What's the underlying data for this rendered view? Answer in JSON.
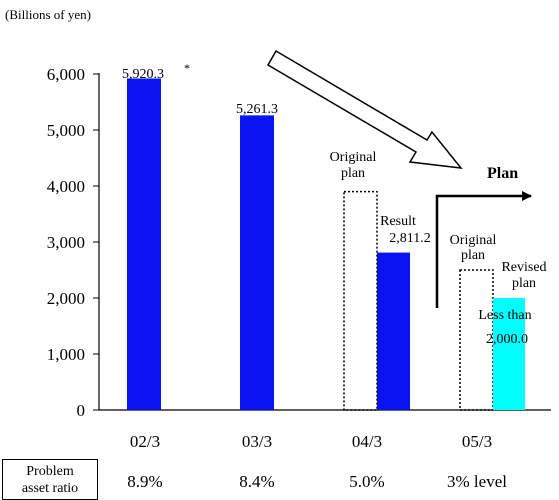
{
  "chart_data": {
    "type": "bar",
    "unit_label": "(Billions of yen)",
    "categories": [
      "02/3",
      "03/3",
      "04/3",
      "05/3"
    ],
    "ylim": [
      0,
      6500
    ],
    "yticks": [
      0,
      1000,
      2000,
      3000,
      4000,
      5000,
      6000
    ],
    "ytick_labels": [
      "0",
      "1,000",
      "2,000",
      "3,000",
      "4,000",
      "5,000",
      "6,000"
    ],
    "series": [
      {
        "name": "Result",
        "style": "solid",
        "color": "#0a14f0",
        "values": [
          5920.3,
          5261.3,
          2811.2,
          null
        ],
        "value_labels": [
          "5,920.3",
          "5,261.3",
          "2,811.2",
          ""
        ]
      },
      {
        "name": "Original plan",
        "style": "dotted-outline",
        "values": [
          null,
          null,
          3900,
          2500
        ]
      },
      {
        "name": "Revised plan",
        "style": "solid",
        "color": "#00ffff",
        "values": [
          null,
          null,
          null,
          2000
        ]
      }
    ],
    "footnote_marker": "*",
    "annotations": {
      "original_plan_0403": [
        "Original",
        "plan"
      ],
      "result_0403": "Result",
      "original_plan_0503": [
        "Original",
        "plan"
      ],
      "revised_plan_0503": [
        "Revised",
        "plan"
      ],
      "revised_value_0503": [
        "Less than",
        "2,000.0"
      ],
      "plan": "Plan"
    },
    "ratio_row": {
      "label": [
        "Problem",
        "asset ratio"
      ],
      "values": [
        "8.9%",
        "8.4%",
        "5.0%",
        "3% level"
      ]
    },
    "grid": false,
    "legend": "none"
  }
}
